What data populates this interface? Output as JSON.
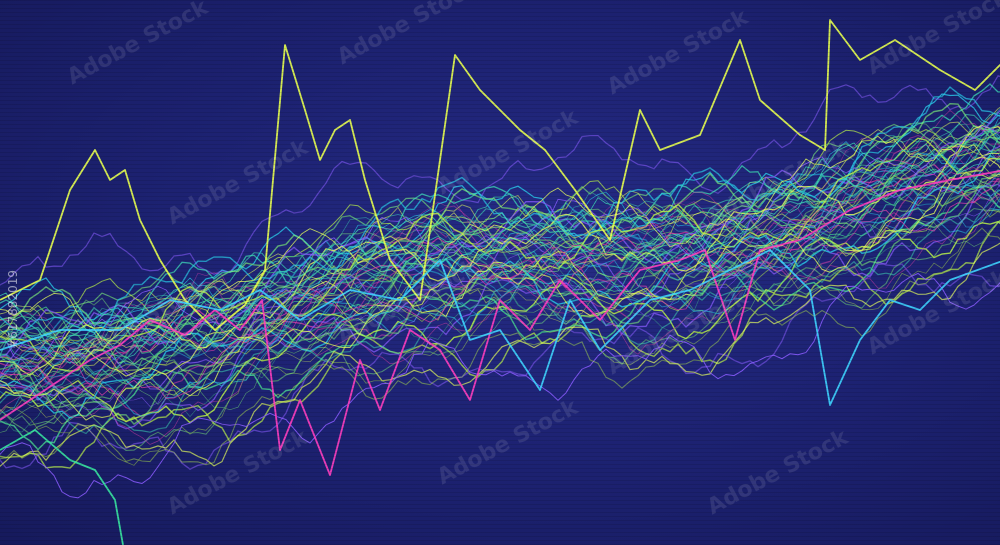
{
  "watermark": {
    "text": "Adobe Stock"
  },
  "stock_id": "#617882019",
  "colors": {
    "background": "#1c2170",
    "palette": [
      "#b9f04a",
      "#3fe0b8",
      "#29c7e6",
      "#d93fa6",
      "#7df07a",
      "#e6ff5c",
      "#8a5cff",
      "#48d68f"
    ],
    "bright": [
      "#e8ff4f",
      "#39e6a0",
      "#ff3fc0",
      "#3fd4ff"
    ]
  }
}
